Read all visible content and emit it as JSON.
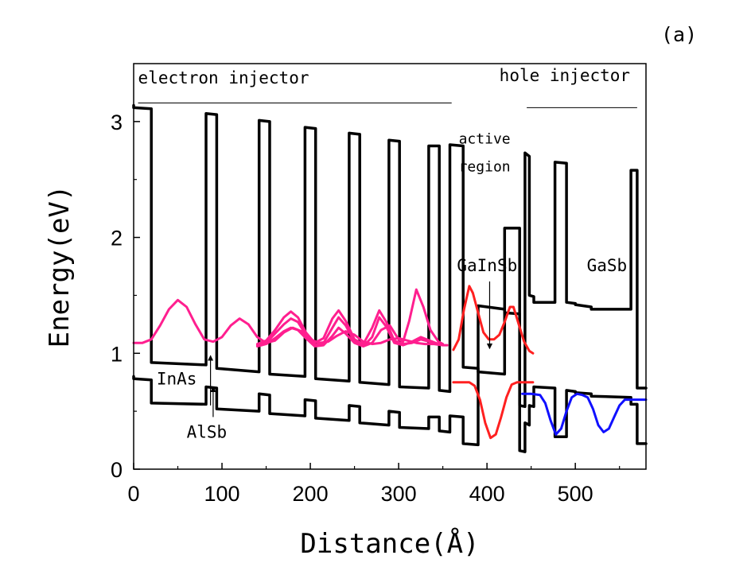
{
  "figure": {
    "panel_label": "(a)"
  },
  "chart_data": {
    "type": "line",
    "xlabel": "Distance(Å)",
    "ylabel": "Energy(eV)",
    "xlim": [
      0,
      580
    ],
    "ylim": [
      0,
      3.5
    ],
    "x_ticks": [
      0,
      100,
      200,
      300,
      400,
      500
    ],
    "y_ticks": [
      0,
      1,
      2,
      3
    ],
    "grid": false,
    "legend": "none",
    "colors": {
      "band_edges": "#000000",
      "electron_wavefunctions": "#ff1f8f",
      "active_wavefunctions": "#ff2020",
      "hole_wavefunction": "#1010ff"
    },
    "annotations": [
      {
        "key": "electron_injector",
        "text": "electron injector",
        "x": 5,
        "y": 3.33
      },
      {
        "key": "hole_injector",
        "text": "hole injector",
        "x": 414,
        "y": 3.35
      },
      {
        "key": "active_line1",
        "text": "active",
        "x": 368,
        "y": 2.81
      },
      {
        "key": "active_line2",
        "text": "region",
        "x": 368,
        "y": 2.57
      },
      {
        "key": "gainsb",
        "text": "GaInSb",
        "x": 366,
        "y": 1.71
      },
      {
        "key": "gasb",
        "text": "GaSb",
        "x": 513,
        "y": 1.71
      },
      {
        "key": "inas",
        "text": "InAs",
        "x": 26,
        "y": 0.73
      },
      {
        "key": "alsb",
        "text": "AlSb",
        "x": 60,
        "y": 0.27
      }
    ],
    "annotation_lines": [
      {
        "name": "electron-injector-bracket",
        "x": [
          5,
          360
        ],
        "y": [
          3.16,
          3.16
        ]
      },
      {
        "name": "hole-injector-bracket",
        "x": [
          445,
          570
        ],
        "y": [
          3.12,
          3.12
        ]
      }
    ],
    "arrows": [
      {
        "name": "inas-arrow",
        "from": [
          87,
          0.55
        ],
        "to": [
          87,
          0.98
        ]
      },
      {
        "name": "alsb-arrow",
        "from": [
          90,
          0.45
        ],
        "to": [
          90,
          0.71
        ]
      },
      {
        "name": "gainsb-arrow",
        "from": [
          403,
          1.62
        ],
        "to": [
          403,
          1.04
        ]
      }
    ],
    "series": [
      {
        "key": "conduction_band",
        "color": "#000000",
        "x": [
          0,
          0,
          20,
          20,
          82,
          82,
          94,
          94,
          142,
          142,
          154,
          154,
          194,
          194,
          206,
          206,
          244,
          244,
          256,
          256,
          289,
          289,
          301,
          301,
          334,
          334,
          346,
          346,
          358,
          358,
          373,
          373,
          390,
          390,
          420,
          420,
          437,
          437,
          443,
          443,
          448,
          448,
          453,
          453,
          477,
          477,
          490,
          490,
          500,
          500,
          518,
          518,
          563,
          563,
          570,
          570,
          580
        ],
        "y": [
          3.14,
          3.12,
          3.11,
          0.92,
          0.9,
          3.07,
          3.06,
          0.87,
          0.84,
          3.01,
          3.0,
          0.82,
          0.8,
          2.95,
          2.94,
          0.78,
          0.76,
          2.9,
          2.89,
          0.75,
          0.73,
          2.84,
          2.83,
          0.71,
          0.7,
          2.79,
          2.79,
          0.68,
          0.67,
          2.8,
          2.79,
          0.88,
          0.87,
          0.84,
          0.82,
          2.08,
          2.08,
          0.55,
          0.54,
          2.73,
          2.7,
          1.5,
          1.49,
          1.44,
          1.44,
          2.65,
          2.64,
          1.44,
          1.43,
          1.42,
          1.4,
          1.38,
          1.38,
          2.58,
          2.58,
          0.7,
          0.7
        ]
      },
      {
        "key": "valence_band",
        "color": "#000000",
        "x": [
          0,
          0,
          20,
          20,
          82,
          82,
          94,
          94,
          142,
          142,
          154,
          154,
          194,
          194,
          206,
          206,
          244,
          244,
          256,
          256,
          289,
          289,
          301,
          301,
          334,
          334,
          346,
          346,
          358,
          358,
          373,
          373,
          390,
          390,
          420,
          420,
          437,
          437,
          443,
          443,
          448,
          448,
          453,
          453,
          477,
          477,
          490,
          490,
          500,
          500,
          518,
          518,
          563,
          563,
          570,
          570,
          580
        ],
        "y": [
          0.8,
          0.78,
          0.77,
          0.57,
          0.56,
          0.71,
          0.7,
          0.52,
          0.5,
          0.65,
          0.64,
          0.48,
          0.46,
          0.6,
          0.59,
          0.44,
          0.42,
          0.55,
          0.54,
          0.4,
          0.38,
          0.5,
          0.49,
          0.36,
          0.35,
          0.45,
          0.45,
          0.33,
          0.32,
          0.46,
          0.45,
          0.22,
          0.21,
          1.41,
          1.38,
          1.35,
          1.34,
          0.16,
          0.15,
          0.4,
          0.38,
          0.55,
          0.54,
          0.71,
          0.7,
          0.28,
          0.28,
          0.68,
          0.67,
          0.66,
          0.65,
          0.63,
          0.62,
          0.56,
          0.56,
          0.22,
          0.22
        ]
      },
      {
        "key": "electron_wavefunction_1",
        "color": "#ff1f8f",
        "x": [
          0,
          10,
          20,
          30,
          40,
          50,
          60,
          70,
          80,
          90,
          100,
          110,
          120,
          130,
          140,
          150,
          160,
          170,
          180,
          190,
          200,
          210,
          220,
          230,
          240,
          250,
          260,
          270,
          280,
          290,
          300,
          310,
          320,
          330,
          340,
          350,
          355
        ],
        "y": [
          1.09,
          1.09,
          1.12,
          1.24,
          1.38,
          1.46,
          1.4,
          1.25,
          1.12,
          1.1,
          1.14,
          1.24,
          1.3,
          1.25,
          1.14,
          1.09,
          1.11,
          1.18,
          1.22,
          1.19,
          1.12,
          1.09,
          1.1,
          1.15,
          1.19,
          1.16,
          1.1,
          1.08,
          1.09,
          1.12,
          1.13,
          1.11,
          1.09,
          1.08,
          1.08,
          1.07,
          1.07
        ]
      },
      {
        "key": "electron_wavefunction_2",
        "color": "#ff1f8f",
        "x": [
          140,
          150,
          160,
          170,
          178,
          186,
          195,
          205,
          215,
          225,
          232,
          240,
          250,
          260,
          270,
          278,
          286,
          295,
          305,
          315,
          325,
          335,
          345
        ],
        "y": [
          1.08,
          1.11,
          1.2,
          1.31,
          1.36,
          1.31,
          1.18,
          1.09,
          1.13,
          1.3,
          1.37,
          1.28,
          1.12,
          1.08,
          1.22,
          1.37,
          1.27,
          1.11,
          1.08,
          1.09,
          1.12,
          1.1,
          1.08
        ]
      },
      {
        "key": "electron_wavefunction_3",
        "color": "#ff1f8f",
        "x": [
          140,
          150,
          160,
          170,
          178,
          186,
          195,
          205,
          215,
          225,
          232,
          240,
          250,
          260,
          270,
          278,
          286,
          295,
          305,
          315,
          325,
          335,
          345
        ],
        "y": [
          1.07,
          1.09,
          1.17,
          1.25,
          1.3,
          1.27,
          1.16,
          1.07,
          1.09,
          1.22,
          1.31,
          1.24,
          1.1,
          1.06,
          1.14,
          1.31,
          1.23,
          1.09,
          1.07,
          1.1,
          1.14,
          1.11,
          1.08
        ]
      },
      {
        "key": "electron_wavefunction_4",
        "color": "#ff1f8f",
        "x": [
          140,
          150,
          160,
          170,
          178,
          186,
          195,
          205,
          215,
          225,
          232,
          240,
          250,
          260,
          270,
          280,
          290,
          300,
          305,
          312,
          320,
          328,
          336,
          345,
          350
        ],
        "y": [
          1.06,
          1.08,
          1.13,
          1.19,
          1.22,
          1.2,
          1.13,
          1.06,
          1.07,
          1.15,
          1.22,
          1.17,
          1.09,
          1.06,
          1.09,
          1.2,
          1.24,
          1.12,
          1.1,
          1.28,
          1.55,
          1.4,
          1.2,
          1.1,
          1.08
        ]
      },
      {
        "key": "active_electron_wavefunction",
        "color": "#ff2020",
        "x": [
          362,
          368,
          374,
          380,
          384,
          390,
          396,
          402,
          408,
          414,
          420,
          426,
          430,
          436,
          442,
          448,
          452
        ],
        "y": [
          1.03,
          1.12,
          1.38,
          1.58,
          1.52,
          1.35,
          1.18,
          1.12,
          1.12,
          1.16,
          1.27,
          1.4,
          1.4,
          1.25,
          1.1,
          1.02,
          1.0
        ]
      },
      {
        "key": "active_hole_wavefunction",
        "color": "#ff2020",
        "x": [
          362,
          370,
          380,
          386,
          392,
          398,
          404,
          410,
          416,
          422,
          428,
          434,
          440,
          446,
          452
        ],
        "y": [
          0.75,
          0.75,
          0.75,
          0.72,
          0.6,
          0.4,
          0.27,
          0.3,
          0.45,
          0.62,
          0.73,
          0.75,
          0.75,
          0.75,
          0.75
        ]
      },
      {
        "key": "hole_wavefunction",
        "color": "#1010ff",
        "x": [
          440,
          450,
          460,
          466,
          472,
          478,
          484,
          490,
          496,
          502,
          508,
          514,
          520,
          526,
          532,
          538,
          544,
          550,
          556,
          562,
          568,
          574,
          580
        ],
        "y": [
          0.65,
          0.65,
          0.64,
          0.57,
          0.42,
          0.3,
          0.35,
          0.5,
          0.62,
          0.65,
          0.64,
          0.62,
          0.52,
          0.38,
          0.32,
          0.35,
          0.45,
          0.55,
          0.6,
          0.6,
          0.6,
          0.6,
          0.6
        ]
      }
    ]
  }
}
